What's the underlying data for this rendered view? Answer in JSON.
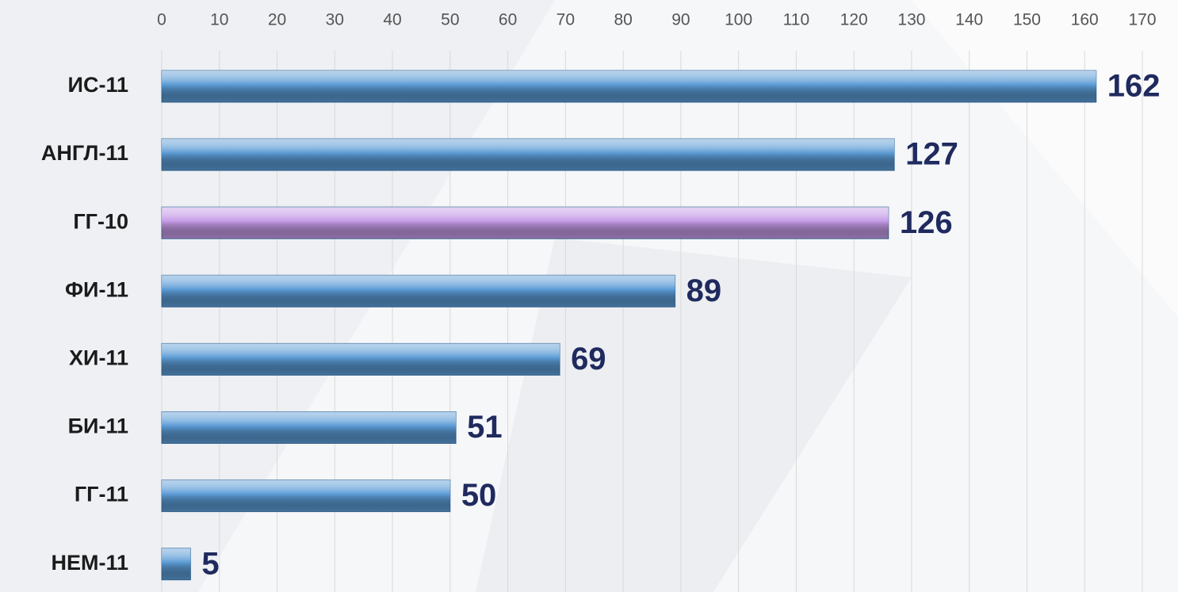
{
  "chart_data": {
    "type": "bar",
    "orientation": "horizontal",
    "categories": [
      "ИС-11",
      "АНГЛ-11",
      "ГГ-10",
      "ФИ-11",
      "ХИ-11",
      "БИ-11",
      "ГГ-11",
      "НЕМ-11"
    ],
    "values": [
      162,
      127,
      126,
      89,
      69,
      51,
      50,
      5
    ],
    "colors": [
      "#5b9bd5",
      "#5b9bd5",
      "#c49ae6",
      "#5b9bd5",
      "#5b9bd5",
      "#5b9bd5",
      "#5b9bd5",
      "#5b9bd5"
    ],
    "xlim": [
      0,
      170
    ],
    "xticks": [
      0,
      10,
      20,
      30,
      40,
      50,
      60,
      70,
      80,
      90,
      100,
      110,
      120,
      130,
      140,
      150,
      160,
      170
    ],
    "grid": true
  }
}
